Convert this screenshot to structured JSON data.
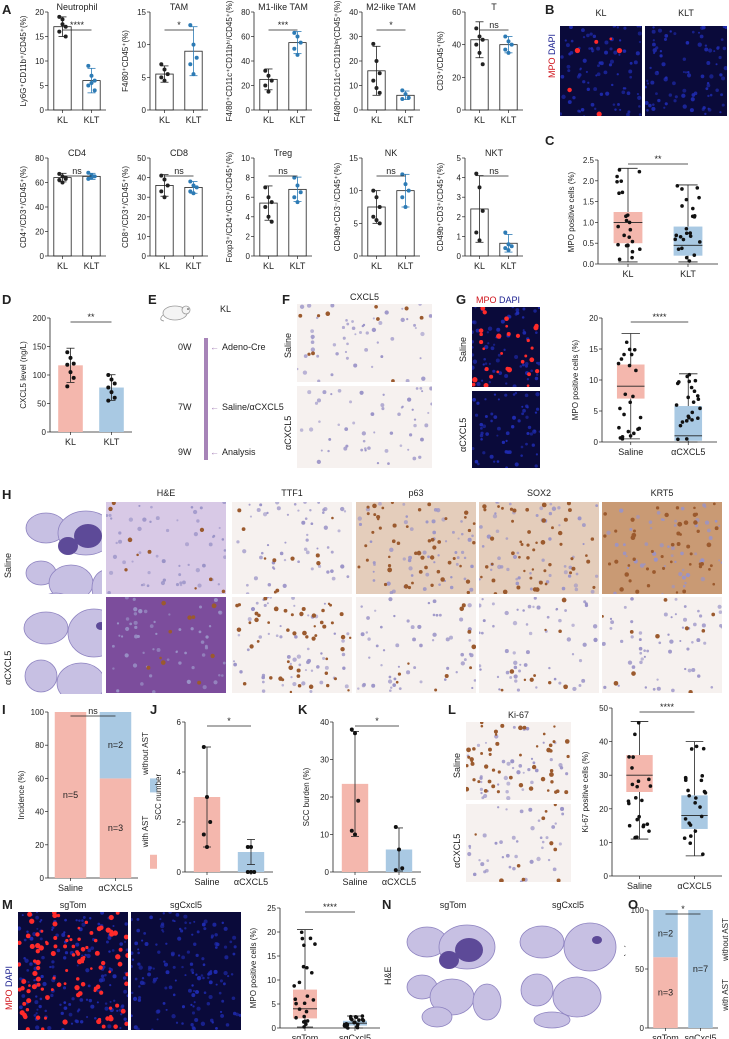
{
  "panels": {
    "A": "A",
    "B": "B",
    "C": "C",
    "D": "D",
    "E": "E",
    "F": "F",
    "G": "G",
    "H": "H",
    "I": "I",
    "J": "J",
    "K": "K",
    "L": "L",
    "M": "M",
    "N": "N",
    "O": "O"
  },
  "colors": {
    "kl": "#f4b7ad",
    "klt": "#a9c9e3",
    "dot": "#111111",
    "timeline": "#a784b8",
    "mpo_red": "#d0141c",
    "dapi_blue": "#1a1f8f",
    "he_purple": "#7a3e9a",
    "ihc_brown": "#9b5a2e"
  },
  "panelB": {
    "left_label": "KL",
    "right_label": "KLT",
    "side_label_mpo": "MPO",
    "side_label_dapi": "DAPI"
  },
  "panelE": {
    "mouse_label": "KL",
    "timeline": [
      {
        "t": "0W",
        "event": "Adeno-Cre"
      },
      {
        "t": "7W",
        "event": "Saline/αCXCL5"
      },
      {
        "t": "9W",
        "event": "Analysis"
      }
    ]
  },
  "panelF": {
    "title": "CXCL5",
    "rows": [
      "Saline",
      "αCXCL5"
    ]
  },
  "panelG": {
    "title_mpo": "MPO",
    "title_dapi": "DAPI",
    "rows": [
      "Saline",
      "αCXCL5"
    ]
  },
  "panelH": {
    "columns": [
      "H&E",
      "TTF1",
      "p63",
      "SOX2",
      "KRT5"
    ],
    "rows": [
      "Saline",
      "αCXCL5"
    ]
  },
  "panelL": {
    "title": "Ki-67",
    "rows": [
      "Saline",
      "αCXCL5"
    ]
  },
  "panelM": {
    "side_label_mpo": "MPO",
    "side_label_dapi": "DAPI",
    "left_label": "sgTom",
    "right_label": "sgCxcl5"
  },
  "panelN": {
    "side_label": "H&E",
    "left_label": "sgTom",
    "right_label": "sgCxcl5"
  },
  "chart_data": [
    {
      "id": "A-neutrophil",
      "type": "bar",
      "title": "Neutrophil",
      "ylabel": "Ly6G⁺CD11b⁺/CD45⁺(%)",
      "categories": [
        "KL",
        "KLT"
      ],
      "values": [
        17,
        6
      ],
      "ylim": [
        0,
        20
      ],
      "yticks": [
        0,
        5,
        10,
        15,
        20
      ],
      "sig": "****",
      "points": [
        [
          19,
          18.5,
          17,
          16,
          17.5,
          15
        ],
        [
          9,
          7,
          6,
          5,
          5.5,
          4
        ]
      ]
    },
    {
      "id": "A-tam",
      "type": "bar",
      "title": "TAM",
      "ylabel": "F4/80⁺CD45⁺(%)",
      "categories": [
        "KL",
        "KLT"
      ],
      "values": [
        5.5,
        9
      ],
      "ylim": [
        0,
        15
      ],
      "yticks": [
        0,
        5,
        10,
        15
      ],
      "sig": "*",
      "points": [
        [
          7,
          6.2,
          5.5,
          5,
          4.5
        ],
        [
          13,
          10,
          8,
          7,
          5.5
        ]
      ]
    },
    {
      "id": "A-m1",
      "type": "bar",
      "title": "M1-like TAM",
      "ylabel": "F4/80⁺CD11c⁺CD11bʰⁱ/CD45⁺(%)",
      "categories": [
        "KL",
        "KLT"
      ],
      "values": [
        25,
        55
      ],
      "ylim": [
        0,
        80
      ],
      "yticks": [
        0,
        20,
        40,
        60,
        80
      ],
      "sig": "***",
      "points": [
        [
          32,
          28,
          24,
          20,
          15
        ],
        [
          63,
          60,
          55,
          50,
          45
        ]
      ]
    },
    {
      "id": "A-m2",
      "type": "bar",
      "title": "M2-like TAM",
      "ylabel": "F4/80⁺CD11c⁺CD11bˡᵒ(CD45⁺(%)",
      "categories": [
        "KL",
        "KLT"
      ],
      "values": [
        16,
        6
      ],
      "ylim": [
        0,
        40
      ],
      "yticks": [
        0,
        10,
        20,
        30,
        40
      ],
      "sig": "*",
      "points": [
        [
          27,
          20,
          15,
          12,
          9,
          7
        ],
        [
          8,
          6.5,
          5,
          4.5
        ]
      ]
    },
    {
      "id": "A-t",
      "type": "bar",
      "title": "T",
      "ylabel": "CD3⁺/CD45⁺(%)",
      "categories": [
        "KL",
        "KLT"
      ],
      "values": [
        43,
        40
      ],
      "ylim": [
        0,
        60
      ],
      "yticks": [
        0,
        20,
        40,
        60
      ],
      "sig": "ns",
      "points": [
        [
          50,
          45,
          43,
          40,
          35,
          28
        ],
        [
          45,
          42,
          40,
          37,
          35
        ]
      ]
    },
    {
      "id": "A-cd4",
      "type": "bar",
      "title": "CD4",
      "ylabel": "CD4⁺/CD3⁺/CD45⁺(%)",
      "categories": [
        "KL",
        "KLT"
      ],
      "values": [
        64,
        65
      ],
      "ylim": [
        0,
        80
      ],
      "yticks": [
        0,
        20,
        40,
        60,
        80
      ],
      "sig": "ns",
      "points": [
        [
          67,
          65,
          63,
          62,
          60,
          64
        ],
        [
          68,
          66,
          65,
          63,
          64
        ]
      ]
    },
    {
      "id": "A-cd8",
      "type": "bar",
      "title": "CD8",
      "ylabel": "CD8⁺/CD3⁺/CD45⁺(%)",
      "categories": [
        "KL",
        "KLT"
      ],
      "values": [
        36,
        35
      ],
      "ylim": [
        0,
        50
      ],
      "yticks": [
        0,
        10,
        20,
        30,
        40,
        50
      ],
      "sig": "ns",
      "points": [
        [
          41,
          39,
          36,
          33,
          30
        ],
        [
          38,
          36,
          35,
          33,
          32
        ]
      ]
    },
    {
      "id": "A-treg",
      "type": "bar",
      "title": "Treg",
      "ylabel": "Foxp3⁺/CD4⁺/CD3⁺/CD45⁺(%)",
      "categories": [
        "KL",
        "KLT"
      ],
      "values": [
        5.4,
        6.8
      ],
      "ylim": [
        0,
        10
      ],
      "yticks": [
        0,
        2,
        4,
        6,
        8,
        10
      ],
      "sig": "ns",
      "points": [
        [
          7,
          6,
          5.5,
          5,
          4,
          3.5
        ],
        [
          8,
          7.2,
          6.5,
          6,
          5.5
        ]
      ]
    },
    {
      "id": "A-nk",
      "type": "bar",
      "title": "NK",
      "ylabel": "CD49b⁺CD3⁻/CD45⁺(%)",
      "categories": [
        "KL",
        "KLT"
      ],
      "values": [
        7.5,
        10
      ],
      "ylim": [
        0,
        15
      ],
      "yticks": [
        0,
        5,
        10,
        15
      ],
      "sig": "ns",
      "points": [
        [
          10,
          9,
          7.5,
          6,
          5.5,
          5
        ],
        [
          12.5,
          11,
          10,
          9,
          7.5
        ]
      ]
    },
    {
      "id": "A-nkt",
      "type": "bar",
      "title": "NKT",
      "ylabel": "CD49b⁺CD3⁺/CD45⁺(%)",
      "categories": [
        "KL",
        "KLT"
      ],
      "values": [
        2.4,
        0.65
      ],
      "ylim": [
        0,
        5
      ],
      "yticks": [
        0,
        1,
        2,
        3,
        4,
        5
      ],
      "sig": "ns",
      "points": [
        [
          4.2,
          3.5,
          2.3,
          1.2,
          0.8
        ],
        [
          1.2,
          0.6,
          0.5,
          0.4,
          0.3
        ]
      ]
    },
    {
      "id": "C",
      "type": "box",
      "ylabel": "MPO positive cells (%)",
      "categories": [
        "KL",
        "KLT"
      ],
      "ylim": [
        0,
        2.5
      ],
      "yticks": [
        0.0,
        0.5,
        1.0,
        1.5,
        2.0,
        2.5
      ],
      "sig": "**",
      "box": [
        {
          "min": 0.05,
          "q1": 0.5,
          "median": 1.0,
          "q3": 1.25,
          "max": 2.3
        },
        {
          "min": 0.05,
          "q1": 0.2,
          "median": 0.45,
          "q3": 0.9,
          "max": 1.9
        }
      ]
    },
    {
      "id": "D",
      "type": "bar",
      "ylabel": "CXCL5 level (ng/L)",
      "categories": [
        "KL",
        "KLT"
      ],
      "values": [
        117,
        78
      ],
      "ylim": [
        0,
        200
      ],
      "yticks": [
        0,
        50,
        100,
        150,
        200
      ],
      "sig": "**",
      "points": [
        [
          140,
          130,
          120,
          118,
          105,
          95,
          80
        ],
        [
          100,
          92,
          85,
          78,
          70,
          60,
          55
        ]
      ]
    },
    {
      "id": "G",
      "type": "box",
      "ylabel": "MPO positive cells (%)",
      "categories": [
        "Saline",
        "αCXCL5"
      ],
      "ylim": [
        0,
        20
      ],
      "yticks": [
        0,
        5,
        10,
        15,
        20
      ],
      "sig": "****",
      "box": [
        {
          "min": 0.5,
          "q1": 7,
          "median": 9,
          "q3": 12.5,
          "max": 17.5
        },
        {
          "min": 0,
          "q1": 0.2,
          "median": 1.0,
          "q3": 5.8,
          "max": 11
        }
      ]
    },
    {
      "id": "I",
      "type": "bar",
      "stacked": true,
      "ylabel": "Incidence (%)",
      "categories": [
        "Saline",
        "αCXCL5"
      ],
      "ylim": [
        0,
        100
      ],
      "yticks": [
        0,
        20,
        40,
        60,
        80,
        100
      ],
      "sig": "ns",
      "series": [
        {
          "name": "with AST",
          "values": [
            100,
            60
          ],
          "labels": [
            "n=5",
            "n=3"
          ]
        },
        {
          "name": "without AST",
          "values": [
            0,
            40
          ],
          "labels": [
            "",
            "n=2"
          ]
        }
      ]
    },
    {
      "id": "J",
      "type": "bar",
      "ylabel": "SCC number",
      "categories": [
        "Saline",
        "αCXCL5"
      ],
      "values": [
        3,
        0.8
      ],
      "ylim": [
        0,
        6
      ],
      "yticks": [
        0,
        2,
        4,
        6
      ],
      "sig": "*",
      "points": [
        [
          5,
          3,
          2,
          1.5,
          1
        ],
        [
          1,
          1,
          0,
          0,
          0
        ]
      ]
    },
    {
      "id": "K",
      "type": "bar",
      "ylabel": "SCC burden (%)",
      "categories": [
        "Saline",
        "αCXCL5"
      ],
      "values": [
        23.5,
        6
      ],
      "ylim": [
        0,
        40
      ],
      "yticks": [
        0,
        10,
        20,
        30,
        40
      ],
      "sig": "*",
      "points": [
        [
          38,
          37,
          19,
          11,
          10
        ],
        [
          12,
          6,
          1,
          0.5
        ]
      ]
    },
    {
      "id": "L",
      "type": "box",
      "ylabel": "Ki-67 positive cells (%)",
      "categories": [
        "Saline",
        "αCXCL5"
      ],
      "ylim": [
        0,
        50
      ],
      "yticks": [
        0,
        10,
        20,
        30,
        40,
        50
      ],
      "sig": "****",
      "box": [
        {
          "min": 11,
          "q1": 25,
          "median": 30,
          "q3": 36,
          "max": 46
        },
        {
          "min": 6,
          "q1": 14,
          "median": 18,
          "q3": 24,
          "max": 40
        }
      ]
    },
    {
      "id": "M",
      "type": "box",
      "ylabel": "MPO positive cells (%)",
      "categories": [
        "sgTom",
        "sgCxcl5"
      ],
      "ylim": [
        0,
        25
      ],
      "yticks": [
        0,
        5,
        10,
        15,
        20,
        25
      ],
      "sig": "****",
      "box": [
        {
          "min": 0.2,
          "q1": 2,
          "median": 4,
          "q3": 8,
          "max": 20.5
        },
        {
          "min": 0,
          "q1": 0.5,
          "median": 1,
          "q3": 1.5,
          "max": 2.5
        }
      ]
    },
    {
      "id": "O",
      "type": "bar",
      "stacked": true,
      "ylabel": "Incidence (%)",
      "categories": [
        "sgTom",
        "sgCxcl5"
      ],
      "ylim": [
        0,
        100
      ],
      "yticks": [
        0,
        50,
        100
      ],
      "sig": "*",
      "series": [
        {
          "name": "with AST",
          "values": [
            60,
            0
          ],
          "labels": [
            "n=3",
            ""
          ]
        },
        {
          "name": "without AST",
          "values": [
            40,
            100
          ],
          "labels": [
            "n=2",
            "n=7"
          ]
        }
      ]
    }
  ]
}
